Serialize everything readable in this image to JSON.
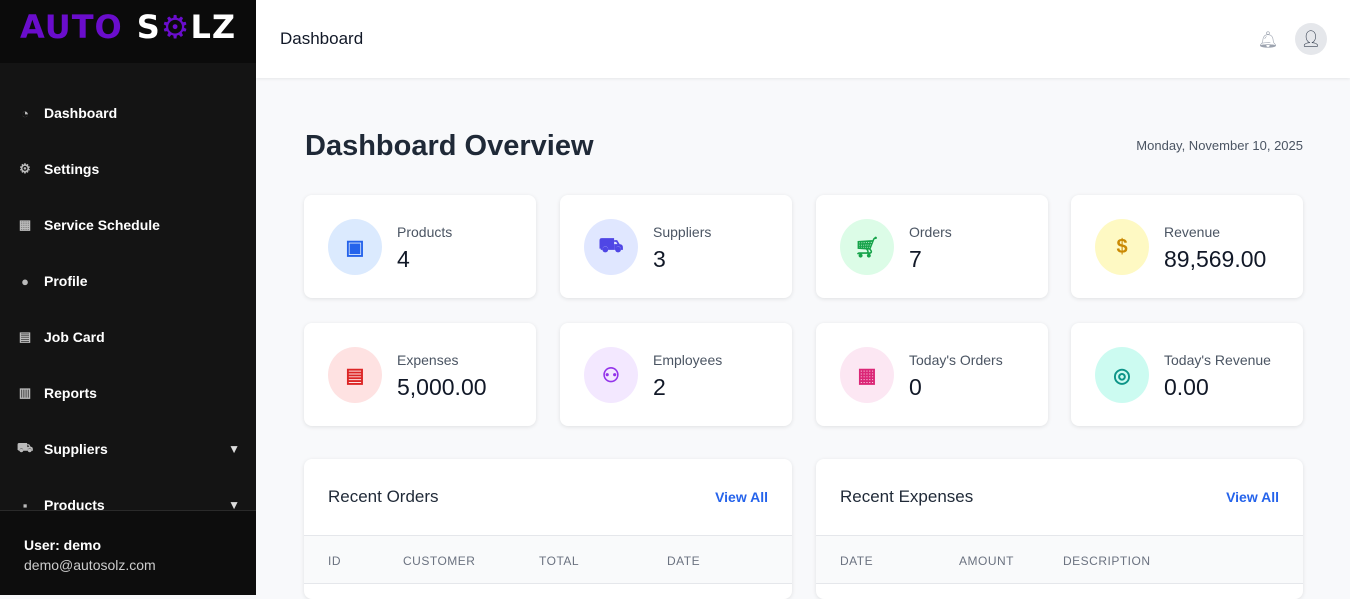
{
  "logo": {
    "part1": "AUTO",
    "part2a": "S",
    "part2b": "LZ"
  },
  "sidebar": {
    "items": [
      {
        "label": "Dashboard",
        "icon": "gauge-icon"
      },
      {
        "label": "Settings",
        "icon": "gear-icon"
      },
      {
        "label": "Service Schedule",
        "icon": "calendar-icon"
      },
      {
        "label": "Profile",
        "icon": "user-icon"
      },
      {
        "label": "Job Card",
        "icon": "file-icon"
      },
      {
        "label": "Reports",
        "icon": "chart-icon"
      },
      {
        "label": "Suppliers",
        "icon": "truck-icon",
        "expandable": true
      },
      {
        "label": "Products",
        "icon": "boxes-icon",
        "expandable": true
      }
    ],
    "user": "User: demo",
    "email": "demo@autosolz.com"
  },
  "header": {
    "title": "Dashboard"
  },
  "main": {
    "title": "Dashboard Overview",
    "date": "Monday, November 10, 2025",
    "cards": [
      {
        "label": "Products",
        "value": "4",
        "icon": "box-icon",
        "color": "#2563eb",
        "bg": "#dbeafe"
      },
      {
        "label": "Suppliers",
        "value": "3",
        "icon": "truck-icon",
        "color": "#4f46e5",
        "bg": "#e0e7ff"
      },
      {
        "label": "Orders",
        "value": "7",
        "icon": "cart-icon",
        "color": "#16a34a",
        "bg": "#dcfce7"
      },
      {
        "label": "Revenue",
        "value": "89,569.00",
        "icon": "dollar-icon",
        "color": "#ca8a04",
        "bg": "#fef9c3"
      },
      {
        "label": "Expenses",
        "value": "5,000.00",
        "icon": "invoice-icon",
        "color": "#dc2626",
        "bg": "#fee2e2"
      },
      {
        "label": "Employees",
        "value": "2",
        "icon": "users-icon",
        "color": "#9333ea",
        "bg": "#f3e8ff"
      },
      {
        "label": "Today's Orders",
        "value": "0",
        "icon": "calendar-icon",
        "color": "#db2777",
        "bg": "#fce7f3"
      },
      {
        "label": "Today's Revenue",
        "value": "0.00",
        "icon": "coins-icon",
        "color": "#0d9488",
        "bg": "#ccfbf1"
      }
    ],
    "recent_orders": {
      "title": "Recent Orders",
      "view_all": "View All",
      "columns": [
        "ID",
        "CUSTOMER",
        "TOTAL",
        "DATE"
      ]
    },
    "recent_expenses": {
      "title": "Recent Expenses",
      "view_all": "View All",
      "columns": [
        "DATE",
        "AMOUNT",
        "DESCRIPTION"
      ]
    }
  }
}
